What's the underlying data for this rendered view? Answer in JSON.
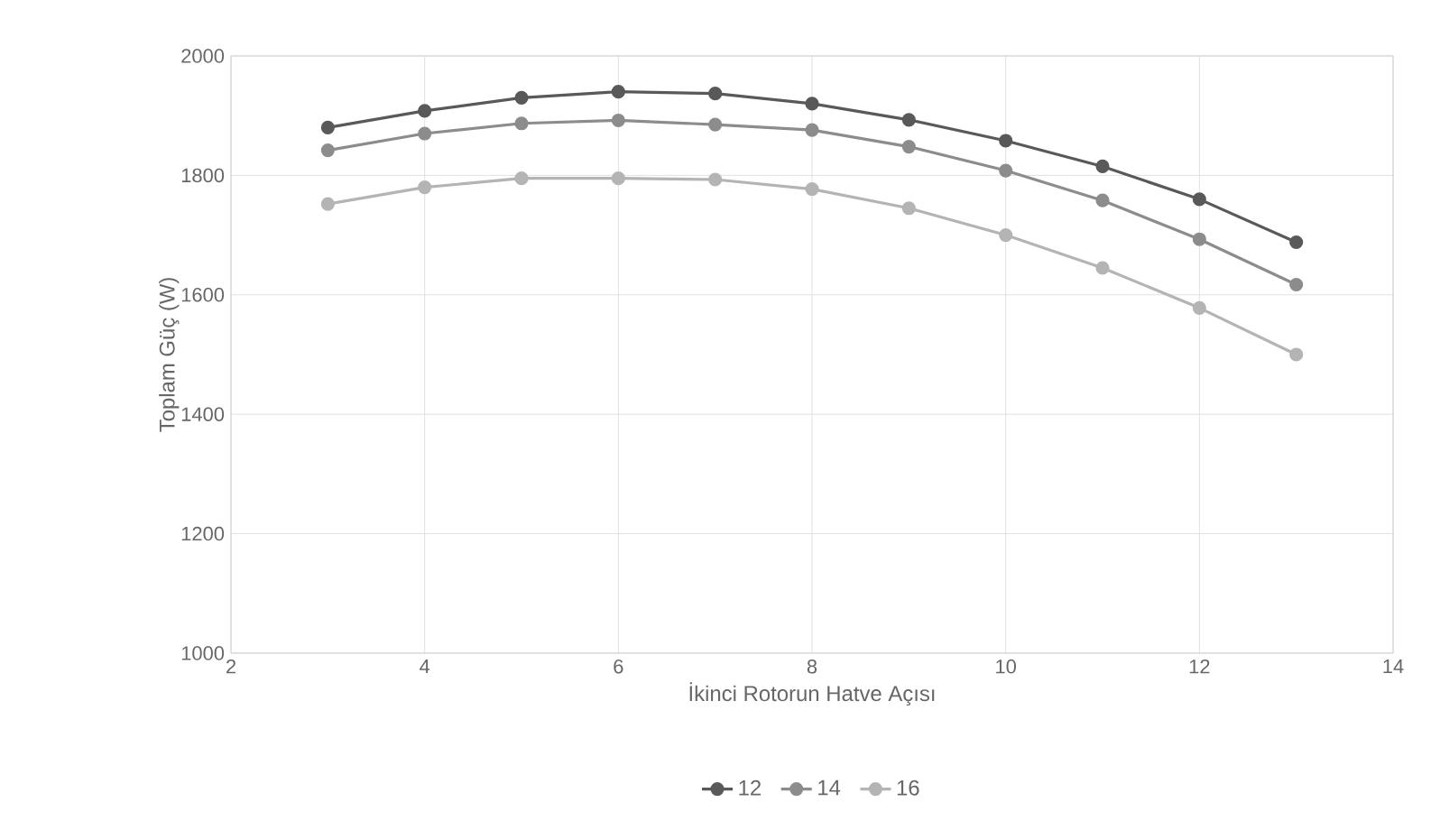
{
  "chart_data": {
    "type": "line",
    "xlabel": "İkinci Rotorun Hatve Açısı",
    "ylabel": "Toplam Güç (W)",
    "x": [
      3,
      4,
      5,
      6,
      7,
      8,
      9,
      10,
      11,
      12,
      13
    ],
    "series": [
      {
        "name": "12",
        "color": "#595959",
        "values": [
          1880,
          1908,
          1930,
          1940,
          1937,
          1920,
          1893,
          1858,
          1815,
          1760,
          1688
        ]
      },
      {
        "name": "14",
        "color": "#8c8c8c",
        "values": [
          1842,
          1870,
          1887,
          1892,
          1885,
          1876,
          1848,
          1808,
          1758,
          1693,
          1617
        ]
      },
      {
        "name": "16",
        "color": "#b4b4b4",
        "values": [
          1752,
          1780,
          1795,
          1795,
          1793,
          1777,
          1745,
          1700,
          1645,
          1578,
          1500
        ]
      }
    ],
    "xlim": [
      2,
      14
    ],
    "xticks": [
      2,
      4,
      6,
      8,
      10,
      12,
      14
    ],
    "ylim": [
      1000,
      2000
    ],
    "yticks": [
      1000,
      1200,
      1400,
      1600,
      1800,
      2000
    ],
    "grid": true,
    "legend": "bottom",
    "marker": "circle",
    "line_style": "solid"
  }
}
